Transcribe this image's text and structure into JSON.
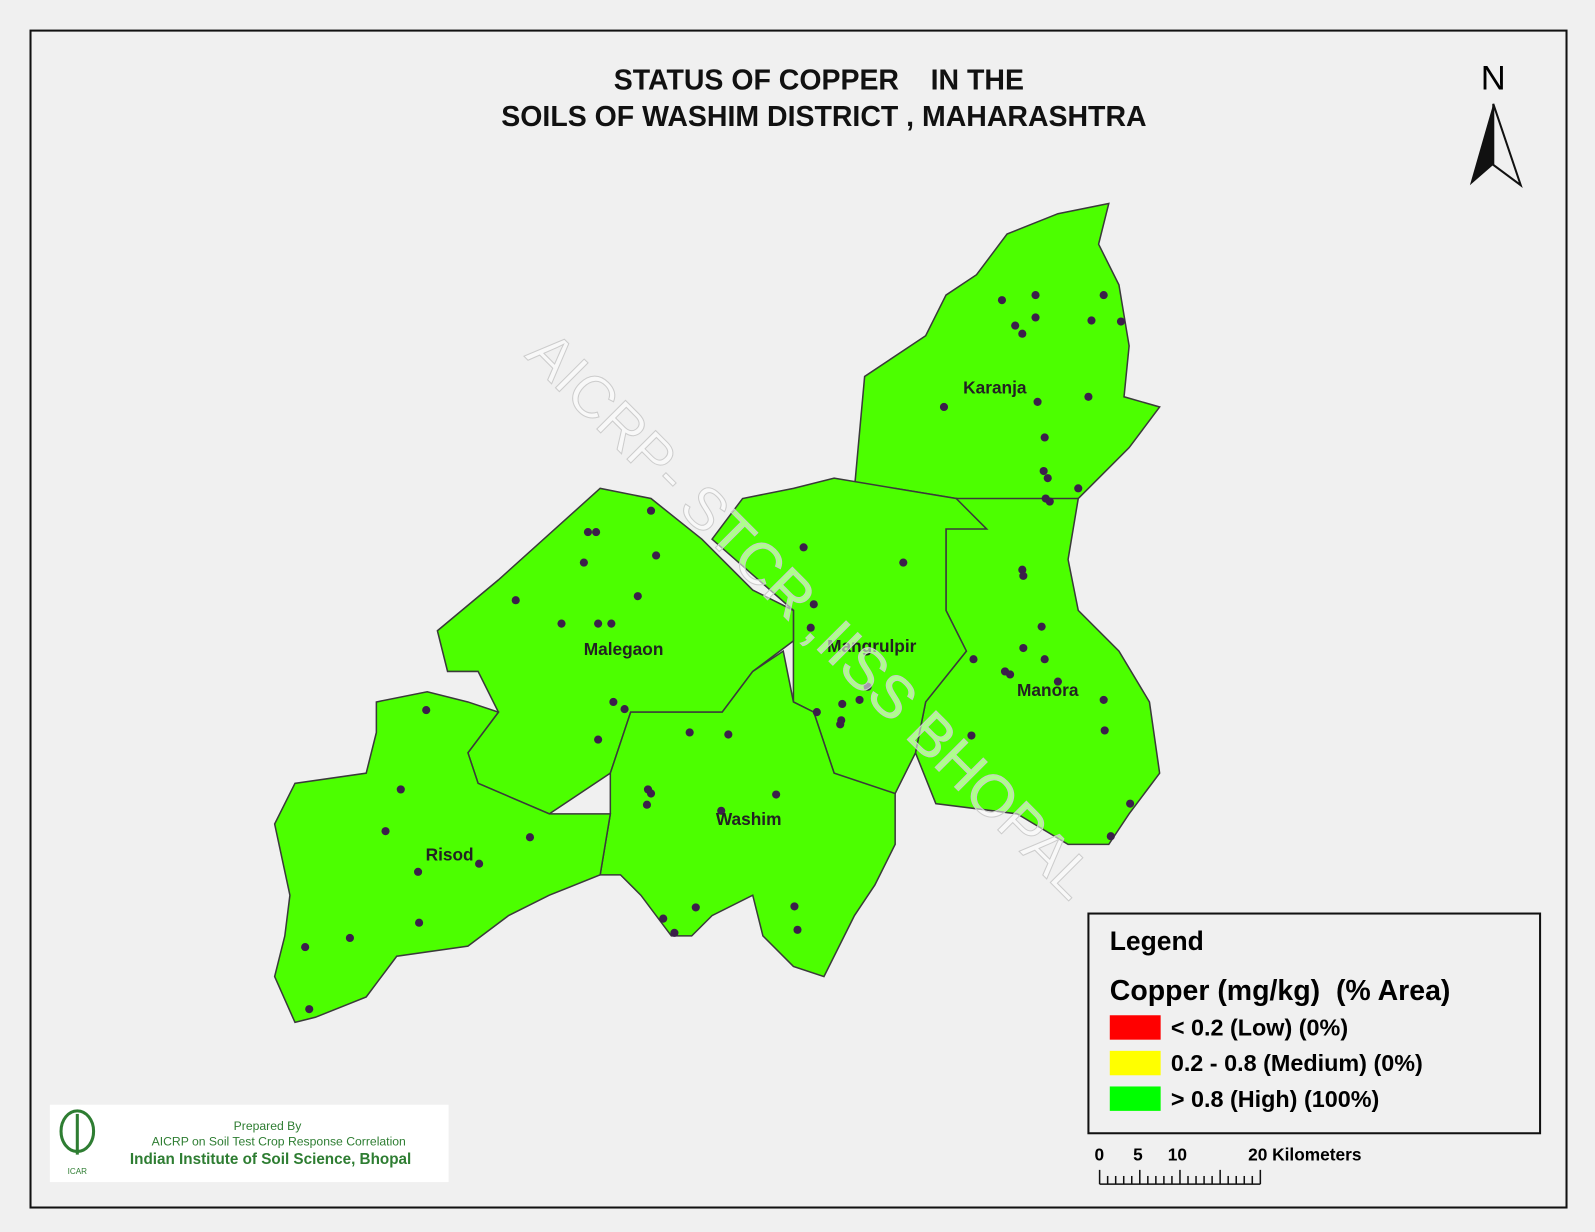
{
  "map": {
    "title_line1": "STATUS OF COPPER    IN THE",
    "title_line2": "SOILS OF WASHIM DISTRICT , MAHARASHTRA",
    "north": "N",
    "watermark": "AICRP- STCR ,IISS BHOPAL",
    "districts": [
      {
        "label": "Karanja"
      },
      {
        "label": "Manora"
      },
      {
        "label": "Mangrulpir"
      },
      {
        "label": "Malegaon"
      },
      {
        "label": "Washim"
      },
      {
        "label": "Risod"
      }
    ],
    "legend": {
      "title": "Legend",
      "subtitle": "Copper (mg/kg)  (% Area)",
      "items": [
        {
          "label": "< 0.2  (Low) (0%)",
          "color": "#ff0000"
        },
        {
          "label": "0.2 - 0.8  (Medium) (0%)",
          "color": "#ffff00"
        },
        {
          "label": "> 0.8 (High) (100%)",
          "color": "#00ff00"
        }
      ]
    },
    "scale": {
      "labels": [
        "0",
        "5",
        "10",
        "20 Kilometers"
      ]
    },
    "credits": {
      "line1": "Prepared By",
      "line2": "AICRP on Soil Test Crop Response Correlation",
      "line3": "Indian Institute of Soil Science, Bhopal"
    }
  }
}
